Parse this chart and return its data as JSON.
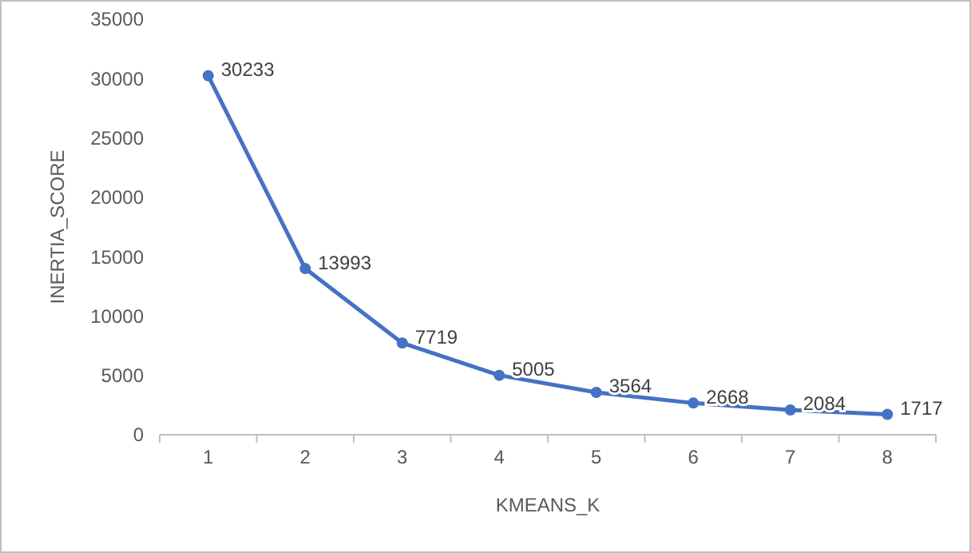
{
  "chart_data": {
    "type": "line",
    "xlabel": "KMEANS_K",
    "ylabel": "INERTIA_SCORE",
    "categories": [
      "1",
      "2",
      "3",
      "4",
      "5",
      "6",
      "7",
      "8"
    ],
    "series": [
      {
        "color": "#4472c4",
        "values": [
          30233,
          13993,
          7719,
          5005,
          3564,
          2668,
          2084,
          1717
        ]
      }
    ],
    "ylim": [
      0,
      35000
    ],
    "yticks": [
      0,
      5000,
      10000,
      15000,
      20000,
      25000,
      30000,
      35000
    ],
    "grid": false,
    "marker": "circle",
    "line_style": "solid",
    "data_labels": true
  }
}
